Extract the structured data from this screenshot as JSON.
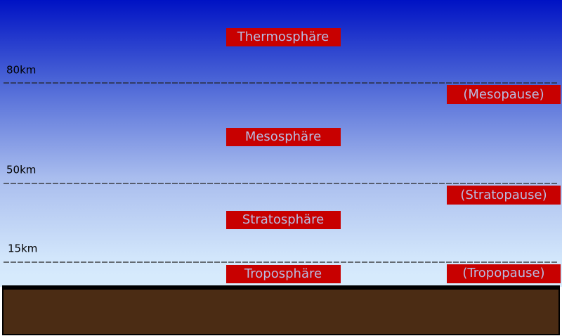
{
  "layers": [
    {
      "label": "Thermosphäre"
    },
    {
      "label": "Mesosphäre"
    },
    {
      "label": "Stratosphäre"
    },
    {
      "label": "Troposphäre"
    }
  ],
  "boundaries": [
    {
      "altitude": "80km",
      "label": "(Mesopause)"
    },
    {
      "altitude": "50km",
      "label": "(Stratopause)"
    },
    {
      "altitude": "15km",
      "label": "(Tropopause)"
    }
  ]
}
